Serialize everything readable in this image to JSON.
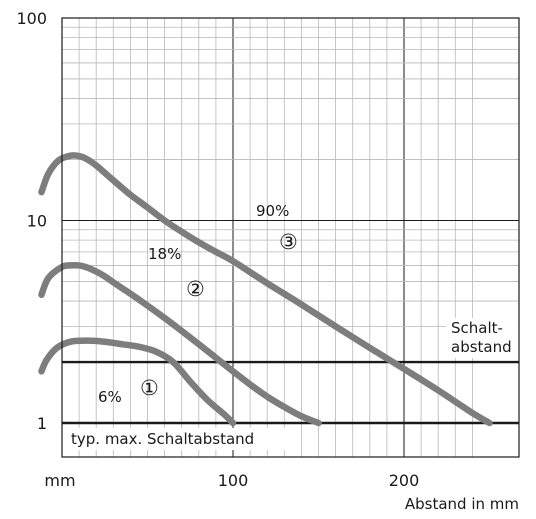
{
  "chart_data": {
    "type": "line",
    "title": "",
    "xlabel": "Abstand in mm",
    "xunit": "mm",
    "ylabel": "",
    "xlim": [
      0,
      250
    ],
    "ylim": [
      1,
      100
    ],
    "yscale": "log",
    "grid": true,
    "x_ticks": [
      {
        "value": 100,
        "label": "100"
      },
      {
        "value": 200,
        "label": "200"
      }
    ],
    "y_ticks": [
      {
        "value": 1,
        "label": "1"
      },
      {
        "value": 10,
        "label": "10"
      },
      {
        "value": 100,
        "label": "100"
      }
    ],
    "series": [
      {
        "id": "1",
        "label": "6%",
        "marker": "①",
        "x": [
          -12,
          -9,
          -3,
          5,
          15,
          25,
          35,
          45,
          55,
          65,
          75,
          85,
          95,
          100
        ],
        "y": [
          1.8,
          2.05,
          2.35,
          2.52,
          2.55,
          2.52,
          2.45,
          2.38,
          2.25,
          2.0,
          1.6,
          1.3,
          1.1,
          1.0
        ]
      },
      {
        "id": "2",
        "label": "18%",
        "marker": "②",
        "x": [
          -12,
          -8,
          0,
          5,
          10,
          15,
          20,
          25,
          30,
          40,
          50,
          60,
          70,
          80,
          90,
          100,
          110,
          120,
          130,
          140,
          150
        ],
        "y": [
          4.3,
          5.2,
          5.9,
          6.0,
          6.0,
          5.85,
          5.6,
          5.3,
          4.95,
          4.35,
          3.8,
          3.3,
          2.85,
          2.45,
          2.1,
          1.8,
          1.55,
          1.35,
          1.2,
          1.08,
          1.0
        ]
      },
      {
        "id": "3",
        "label": "90%",
        "marker": "③",
        "x": [
          -12,
          -8,
          -2,
          5,
          10,
          15,
          20,
          25,
          30,
          40,
          50,
          60,
          70,
          80,
          90,
          100,
          120,
          140,
          160,
          180,
          200,
          220,
          240,
          250
        ],
        "y": [
          13.8,
          17.0,
          19.8,
          20.9,
          20.8,
          20.0,
          18.7,
          17.2,
          15.8,
          13.4,
          11.6,
          10.0,
          8.8,
          7.8,
          7.0,
          6.3,
          4.9,
          3.85,
          3.0,
          2.35,
          1.85,
          1.45,
          1.12,
          1.0
        ]
      }
    ],
    "reference_lines": [
      {
        "y": 2.0,
        "label_lines": [
          "Schalt-",
          "abstand"
        ]
      },
      {
        "y": 1.0,
        "label_lines": [
          "typ. max. Schaltabstand"
        ]
      }
    ],
    "colors": {
      "series": "#7d7d7d",
      "frame": "#1a1a1a",
      "grid": "#8a8a8a",
      "minor_grid": "#b8b8b8"
    }
  }
}
